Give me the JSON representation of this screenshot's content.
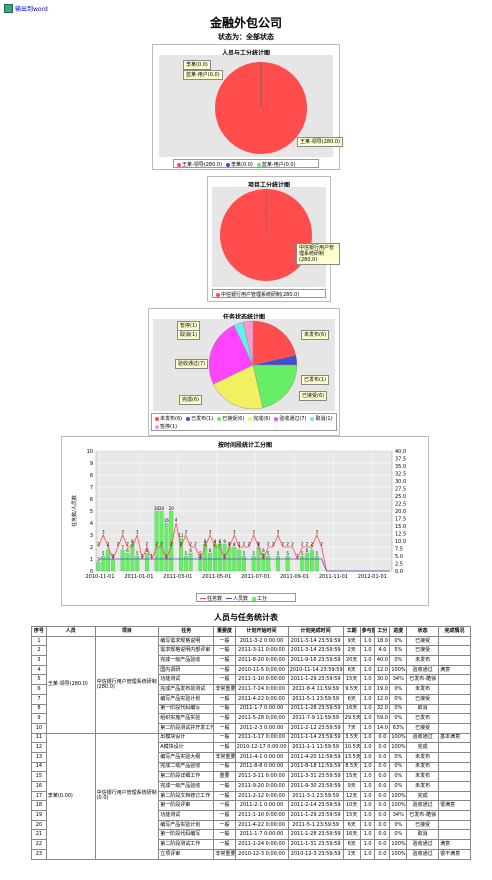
{
  "export_link": "输出到word",
  "page_title": "金融外包公司",
  "status_text": "状态为：全部状态",
  "colors": {
    "red": "#ff4d4d",
    "blue": "#4a4ad0",
    "green": "#66ee66",
    "yellow": "#f0f060",
    "magenta": "#ff44ff",
    "cyan": "#66eeee",
    "pink": "#ff99cc"
  },
  "chart_data": [
    {
      "type": "pie",
      "title": "人员与工分统计图",
      "categories": [
        "王某-领导",
        "李某",
        "蓝某-用户"
      ],
      "values": [
        280.0,
        0.0,
        0.0
      ],
      "labels": [
        "李某(0.0)",
        "蓝某-用户(0.0)",
        "王某-领导(280.0)"
      ],
      "legend": [
        "王某-领导(280.0)",
        "李某(0.0)",
        "蓝某-用户(0.0)"
      ],
      "colors": [
        "#ff4d4d",
        "#4a4ad0",
        "#66ee66"
      ]
    },
    {
      "type": "pie",
      "title": "项目工分统计图",
      "categories": [
        "中信银行用户管理系统研制"
      ],
      "values": [
        280.0
      ],
      "labels": [
        "中信银行用户管理系统研制(280.0)"
      ],
      "legend": [
        "中信银行用户管理系统研制(280.0)"
      ],
      "colors": [
        "#ff4d4d"
      ]
    },
    {
      "type": "pie",
      "title": "任务状态统计图",
      "categories": [
        "未发布",
        "已发布",
        "已接受",
        "完成",
        "验收通过",
        "取消",
        "暂停"
      ],
      "values": [
        6,
        1,
        6,
        6,
        7,
        1,
        1
      ],
      "labels": [
        "暂停(1)",
        "取消(1)",
        "验收通过(7)",
        "完成(6)",
        "未发布(6)",
        "已发布(1)",
        "已接受(6)"
      ],
      "legend": [
        "未发布(6)",
        "已发布(1)",
        "已接受(6)",
        "完成(6)",
        "验收通过(7)",
        "取消(1)",
        "暂停(1)"
      ],
      "colors": [
        "#ff4d4d",
        "#4a4ad0",
        "#66ee66",
        "#f0f060",
        "#ff44ff",
        "#66eeee",
        "#ff99cc"
      ]
    },
    {
      "type": "bar",
      "title": "按时间段统计工分图",
      "ylabel": "任务数/人员数",
      "ylim": [
        0,
        10
      ],
      "y2lim": [
        0,
        40
      ],
      "yticks": [
        "0",
        "1",
        "2",
        "3",
        "4",
        "5",
        "6",
        "7",
        "8",
        "9",
        "10"
      ],
      "y2ticks": [
        "0.0",
        "2.5",
        "5.0",
        "7.5",
        "10.0",
        "12.5",
        "15.0",
        "17.5",
        "20.0",
        "22.5",
        "25.0",
        "27.5",
        "30.0",
        "32.5",
        "35.0",
        "37.5",
        "40.0"
      ],
      "xticks": [
        "2010-11-01",
        "2011-01-01",
        "2011-03-01",
        "2011-05-01",
        "2011-07-01",
        "2011-09-01",
        "2011-11-01",
        "2012-01-01"
      ],
      "legend": [
        "任务数",
        "人员数",
        "工分"
      ],
      "series": [
        {
          "name": "任务数",
          "color": "#ff4d4d",
          "values": [
            2,
            3,
            2,
            1,
            2,
            3,
            2,
            2,
            3,
            1,
            2,
            1,
            2,
            2,
            1,
            2,
            4,
            2,
            3,
            2,
            2,
            1,
            2,
            3,
            2,
            2,
            1,
            2,
            3,
            2,
            2,
            2,
            3,
            2,
            1,
            2,
            2,
            3,
            2,
            2,
            2,
            1,
            2,
            2,
            2,
            3,
            2,
            0,
            0,
            0,
            0,
            0,
            0,
            0,
            0,
            0,
            0,
            0,
            0,
            0,
            0
          ]
        },
        {
          "name": "人员数",
          "color": "#4a4ad0",
          "values": [
            1,
            1,
            1,
            1,
            1,
            1,
            1,
            1,
            1,
            1,
            1,
            1,
            1,
            1,
            1,
            1,
            1,
            1,
            1,
            1,
            1,
            1,
            1,
            1,
            1,
            1,
            1,
            1,
            1,
            1,
            1,
            1,
            1,
            1,
            1,
            1,
            1,
            1,
            1,
            1,
            1,
            1,
            1,
            1,
            1,
            1,
            1,
            0,
            0,
            0,
            0,
            0,
            0,
            0,
            0,
            0,
            0,
            0,
            0,
            0,
            0
          ]
        },
        {
          "name": "工分",
          "color": "#66ee66",
          "values": [
            3,
            5,
            7,
            4,
            0,
            7,
            6,
            9,
            5,
            0,
            6,
            0,
            20,
            20,
            16,
            20,
            0,
            11,
            5,
            6,
            0,
            5,
            9,
            6,
            9,
            9,
            9,
            8,
            8,
            7,
            5,
            0,
            5,
            8,
            6,
            5,
            0,
            5,
            0,
            5,
            0,
            0,
            5,
            6,
            7,
            5,
            0,
            0,
            0,
            0,
            0,
            0,
            0,
            0,
            0,
            0,
            0,
            0,
            0,
            0,
            0
          ]
        }
      ]
    },
    {
      "type": "table",
      "title": "人员与任务统计表"
    }
  ],
  "table": {
    "headers": [
      "序号",
      "人员",
      "项目",
      "任务",
      "重要度",
      "计划开始时间",
      "计划完成时间",
      "工期",
      "参与度",
      "工分",
      "进度",
      "状态",
      "完成情况"
    ],
    "person1": "王某-领导(280.0)",
    "project1": "中信银行用户管理系统研制(280.0)",
    "person2": "李某(0.00)",
    "project2": "中信银行用户管理系统研制(0.0)",
    "rows": [
      [
        "1",
        "编写需求规格说明",
        "一般",
        "2011-3-2 0:00:00",
        "2011-3-14 23:59:59",
        "9天",
        "1.0",
        "18.0",
        "0%",
        "已接受",
        ""
      ],
      [
        "2",
        "需求规格说明内部评审",
        "一般",
        "2011-3-11 0:00:00",
        "2011-3-14 23:59:59",
        "2天",
        "1.0",
        "4.0",
        "5%",
        "已接受",
        ""
      ],
      [
        "3",
        "完成一级产品验收",
        "一般",
        "2011-8-20 0:00:00",
        "2011-9-16 23:59:59",
        "20天",
        "1.0",
        "40.0",
        "0%",
        "未发布",
        ""
      ],
      [
        "4",
        "国内调研",
        "一般",
        "2010-11-5 0:00:00",
        "2010-11-14 23:59:59",
        "6天",
        "1.0",
        "12.0",
        "100%",
        "验收通过",
        "满意"
      ],
      [
        "5",
        "功能测试",
        "一般",
        "2011-1-10 0:00:00",
        "2011-1-29 23:59:59",
        "15天",
        "1.0",
        "30.0",
        "34%",
        "已发布-酷徐",
        ""
      ],
      [
        "6",
        "完成产品发布前测试",
        "非常重要",
        "2011-7-24 0:00:00",
        "2011-8-4 11:59:59",
        "9.5天",
        "1.0",
        "19.0",
        "0%",
        "未发布",
        ""
      ],
      [
        "7",
        "编写产品实验计划",
        "一般",
        "2011-4-22 0:00:00",
        "2011-5-1 23:59:59",
        "6天",
        "1.0",
        "12.0",
        "0%",
        "已接受",
        ""
      ],
      [
        "8",
        "第一阶段代码编写",
        "一般",
        "2011-1-7 0:00:00",
        "2011-1-28 23:59:59",
        "16天",
        "1.0",
        "32.0",
        "0%",
        "取消",
        ""
      ],
      [
        "9",
        "组织实施产品实验",
        "一般",
        "2011-5-28 0:00:00",
        "2011-7-9 11:59:59",
        "29.5天",
        "1.0",
        "59.0",
        "0%",
        "已发布",
        ""
      ],
      [
        "10",
        "第二阶段测试并开发工作",
        "一般",
        "2011-2-3 0:00:00",
        "2011-2-12 23:59:59",
        "7天",
        "1.0",
        "14.0",
        "63%",
        "已接受",
        ""
      ],
      [
        "11",
        "出模块设计",
        "一般",
        "2011-1-17 0:00:00",
        "2011-1-14 23:59:59",
        "3.5天",
        "1.0",
        "0.0",
        "100%",
        "验收通过",
        "基本满意"
      ],
      [
        "12",
        "A模块设计",
        "一般",
        "2010-12-17 0:00:00",
        "2011-1-1 11:59:59",
        "10.5天",
        "1.0",
        "0.0",
        "100%",
        "完成",
        ""
      ],
      [
        "13",
        "编写产品实验大纲",
        "非常重要",
        "2011-4-1 0:00:00",
        "2011-4-20 11:59:59",
        "13.5天",
        "1.0",
        "0.0",
        "0%",
        "未发布",
        ""
      ],
      [
        "14",
        "完成二级产品验收",
        "一般",
        "2011-8-8 0:00:00",
        "2011-8-18 11:59:59",
        "8.5天",
        "1.0",
        "0.0",
        "0%",
        "未发布",
        ""
      ],
      [
        "15",
        "第二阶段详细工作",
        "重要",
        "2011-3-11 0:00:00",
        "2011-3-31 23:59:59",
        "15天",
        "1.0",
        "0.0",
        "0%",
        "未发布",
        ""
      ],
      [
        "16",
        "完成一级产品验收",
        "一般",
        "2011-9-20 0:00:00",
        "2011-9-30 23:59:59",
        "9天",
        "1.0",
        "0.0",
        "0%",
        "未发布",
        ""
      ],
      [
        "17",
        "第二阶段文档修订工作",
        "一般",
        "2011-2-12 0:00:00",
        "2011-3-1 23:59:59",
        "12天",
        "1.0",
        "0.0",
        "100%",
        "完成",
        ""
      ],
      [
        "18",
        "第一阶段评审",
        "一般",
        "2011-2-1 0:00:00",
        "2011-2-14 23:59:59",
        "10天",
        "1.0",
        "0.0",
        "100%",
        "验收通过",
        "很满意"
      ],
      [
        "19",
        "功能测试",
        "一般",
        "2011-1-10 0:00:00",
        "2011-1-29 23:59:59",
        "15天",
        "1.0",
        "0.0",
        "34%",
        "已发布-酷徐",
        ""
      ],
      [
        "20",
        "编写产品实验计划",
        "一般",
        "2011-4-22 0:00:00",
        "2011-5-1 23:59:59",
        "6天",
        "1.0",
        "0.0",
        "0%",
        "已接受",
        ""
      ],
      [
        "21",
        "第一阶段代码编写",
        "一般",
        "2011-1-7 0:00:00",
        "2011-1-28 23:59:59",
        "16天",
        "1.0",
        "0.0",
        "0%",
        "取消",
        ""
      ],
      [
        "22",
        "第二阶段测试工作",
        "一般",
        "2011-1-24 0:00:00",
        "2011-1-31 23:59:59",
        "6天",
        "1.0",
        "0.0",
        "100%",
        "验收通过",
        "满意"
      ],
      [
        "23",
        "立项评审",
        "非常重要",
        "2010-12-3 0:00:00",
        "2010-12-3 23:59:59",
        "1天",
        "1.0",
        "0.0",
        "100%",
        "验收通过",
        "很不满意"
      ]
    ]
  }
}
